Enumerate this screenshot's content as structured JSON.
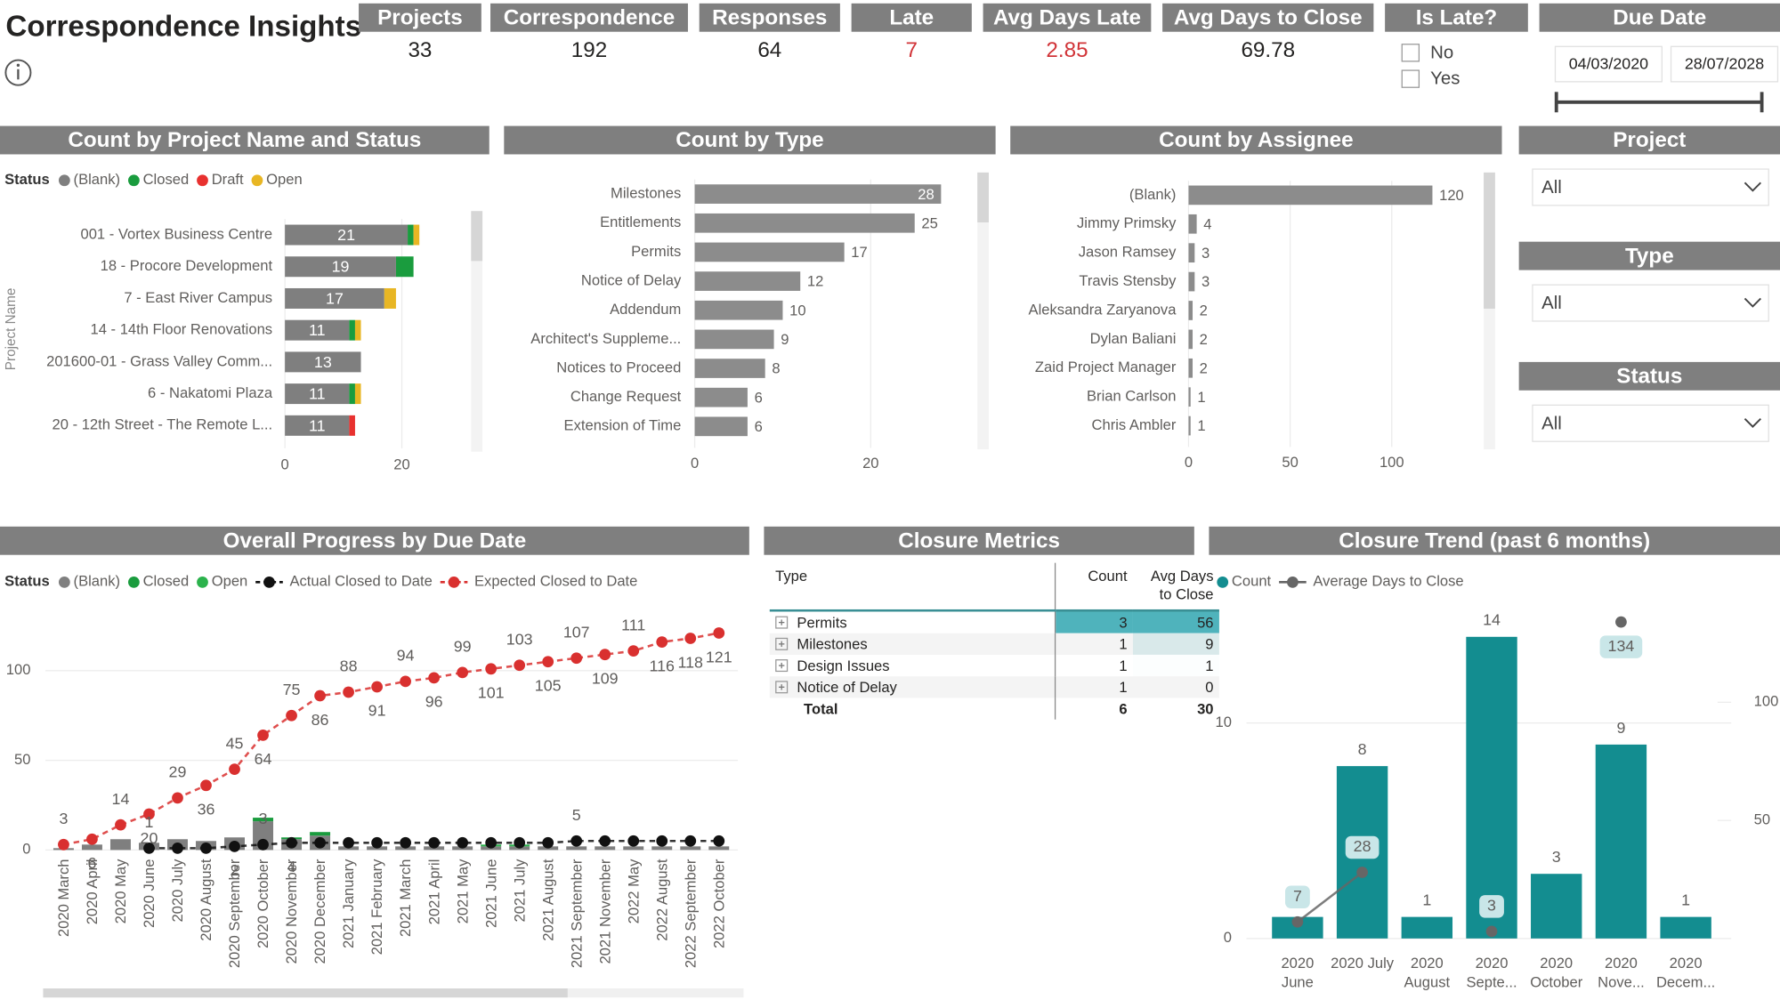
{
  "header": {
    "title": "Correspondence Insights"
  },
  "kpis": [
    {
      "label": "Projects",
      "value": 33,
      "color": "#252423"
    },
    {
      "label": "Correspondence",
      "value": 192,
      "color": "#252423"
    },
    {
      "label": "Responses",
      "value": 64,
      "color": "#252423"
    },
    {
      "label": "Late",
      "value": 7,
      "color": "#d13438"
    },
    {
      "label": "Avg Days Late",
      "value": 2.85,
      "color": "#d13438"
    },
    {
      "label": "Avg Days to Close",
      "value": 69.78,
      "color": "#252423"
    }
  ],
  "slicers": {
    "is_late": {
      "title": "Is Late?",
      "options": [
        "No",
        "Yes"
      ]
    },
    "due_date": {
      "title": "Due Date",
      "start": "04/03/2020",
      "end": "28/07/2028"
    },
    "project": {
      "title": "Project",
      "value": "All"
    },
    "type": {
      "title": "Type",
      "value": "All"
    },
    "status": {
      "title": "Status",
      "value": "All"
    }
  },
  "table": {
    "title": "Closure Metrics",
    "columns": [
      "Type",
      "Count",
      "Avg Days to Close"
    ],
    "rows": [
      [
        "Permits",
        3,
        56
      ],
      [
        "Milestones",
        1,
        9
      ],
      [
        "Design Issues",
        1,
        1
      ],
      [
        "Notice of Delay",
        1,
        0
      ]
    ],
    "total": [
      "Total",
      6,
      30
    ],
    "highlight_color": "#4fb3bc"
  },
  "chart_data": [
    {
      "type": "stacked_hbar",
      "title": "Count by Project Name and Status",
      "legend_title": "Status",
      "ylabel": "Project Name",
      "categories": [
        "001 - Vortex Business Centre",
        "18 - Procore Development",
        "7 - East River Campus",
        "14 - 14th Floor Renovations",
        "201600-01 - Grass Valley Comm...",
        "6 - Nakatomi Plaza",
        "20 - 12th Street - The Remote L..."
      ],
      "series": [
        {
          "name": "(Blank)",
          "color": "#7f7f7f",
          "values": [
            21,
            19,
            17,
            11,
            13,
            11,
            11
          ]
        },
        {
          "name": "Closed",
          "color": "#1a9c3e",
          "values": [
            1,
            3,
            0,
            1,
            0,
            1,
            0
          ]
        },
        {
          "name": "Draft",
          "color": "#e8312f",
          "values": [
            0,
            0,
            0,
            0,
            0,
            0,
            1
          ]
        },
        {
          "name": "Open",
          "color": "#e8b624",
          "values": [
            1,
            0,
            2,
            1,
            0,
            1,
            0
          ]
        }
      ],
      "xlim": [
        0,
        31
      ],
      "xticks": [
        0,
        20
      ],
      "grid": true
    },
    {
      "type": "hbar",
      "title": "Count by Type",
      "categories": [
        "Milestones",
        "Entitlements",
        "Permits",
        "Notice of Delay",
        "Addendum",
        "Architect's Suppleme...",
        "Notices to Proceed",
        "Change Request",
        "Extension of Time"
      ],
      "values": [
        28,
        25,
        17,
        12,
        10,
        9,
        8,
        6,
        6
      ],
      "color": "#8c8c8c",
      "xlim": [
        0,
        31.5
      ],
      "xticks": [
        0,
        20
      ],
      "grid": true
    },
    {
      "type": "hbar",
      "title": "Count by Assignee",
      "categories": [
        "(Blank)",
        "Jimmy Primsky",
        "Jason Ramsey",
        "Travis Stensby",
        "Aleksandra Zaryanova",
        "Dylan Baliani",
        "Zaid Project Manager",
        "Brian Carlson",
        "Chris Ambler"
      ],
      "values": [
        120,
        4,
        3,
        3,
        2,
        2,
        2,
        1,
        1
      ],
      "color": "#8c8c8c",
      "xlim": [
        0,
        141
      ],
      "xticks": [
        0,
        50,
        100
      ],
      "grid": true
    },
    {
      "type": "combo",
      "title": "Overall Progress by Due Date",
      "legend_title": "Status",
      "categories": [
        "2020 March",
        "2020 April",
        "2020 May",
        "2020 June",
        "2020 July",
        "2020 August",
        "2020 September",
        "2020 October",
        "2020 November",
        "2020 December",
        "2021 January",
        "2021 February",
        "2021 March",
        "2021 April",
        "2021 May",
        "2021 June",
        "2021 July",
        "2021 August",
        "2021 September",
        "2021 November",
        "2022 May",
        "2022 August",
        "2022 September",
        "2022 October"
      ],
      "series": [
        {
          "name": "(Blank)",
          "type": "bar",
          "color": "#7f7f7f",
          "values": [
            1,
            3,
            6,
            4,
            6,
            5,
            7,
            16,
            6,
            8,
            2,
            2,
            2,
            2,
            2,
            2,
            2,
            2,
            2,
            2,
            2,
            2,
            2,
            2
          ]
        },
        {
          "name": "Closed",
          "type": "bar",
          "color": "#1a9c3e",
          "values": [
            0,
            0,
            0,
            0,
            0,
            0,
            0,
            2,
            1,
            2,
            0,
            0,
            0,
            0,
            0,
            0,
            0,
            0,
            0,
            0,
            0,
            0,
            0,
            0
          ]
        },
        {
          "name": "Open",
          "type": "bar",
          "color": "#2bb24c",
          "values": [
            0,
            0,
            0,
            0,
            0,
            0,
            0,
            0,
            0,
            0,
            0,
            0,
            0,
            0,
            0,
            1,
            1,
            0,
            0,
            0,
            0,
            0,
            0,
            0
          ]
        },
        {
          "name": "Actual Closed to Date",
          "type": "line",
          "color": "#111111",
          "dashed": true,
          "data_labels": true,
          "values": [
            null,
            null,
            null,
            1,
            1,
            1,
            2,
            3,
            4,
            4,
            4,
            4,
            4,
            4,
            4,
            4,
            4,
            4,
            5,
            5,
            5,
            5,
            5,
            5
          ]
        },
        {
          "name": "Expected Closed to Date",
          "type": "line",
          "color": "#d9302f",
          "dashed": true,
          "data_labels": true,
          "values": [
            3,
            6,
            14,
            20,
            29,
            36,
            45,
            64,
            75,
            86,
            88,
            91,
            94,
            96,
            99,
            101,
            103,
            105,
            107,
            109,
            111,
            116,
            118,
            121
          ]
        }
      ],
      "ylim": [
        0,
        125
      ],
      "yticks": [
        0,
        50,
        100
      ],
      "grid": true
    },
    {
      "type": "combo",
      "title": "Closure Trend (past 6 months)",
      "categories": [
        "2020 June",
        "2020 July",
        "2020 August",
        "2020 Septe...",
        "2020 October",
        "2020 Nove...",
        "2020 Decem..."
      ],
      "series": [
        {
          "name": "Count",
          "type": "bar",
          "color": "#138d90",
          "data_labels": true,
          "values": [
            1,
            8,
            1,
            14,
            3,
            9,
            1
          ]
        },
        {
          "name": "Average Days to Close",
          "type": "line",
          "axis": "y2",
          "color": "#666666",
          "data_labels": true,
          "values": [
            7,
            28,
            null,
            3,
            null,
            134,
            null
          ]
        }
      ],
      "ylim": [
        0,
        14.8
      ],
      "yticks": [
        0,
        10
      ],
      "y2lim": [
        0,
        135
      ],
      "y2ticks": [
        50,
        100
      ],
      "grid": true
    }
  ]
}
